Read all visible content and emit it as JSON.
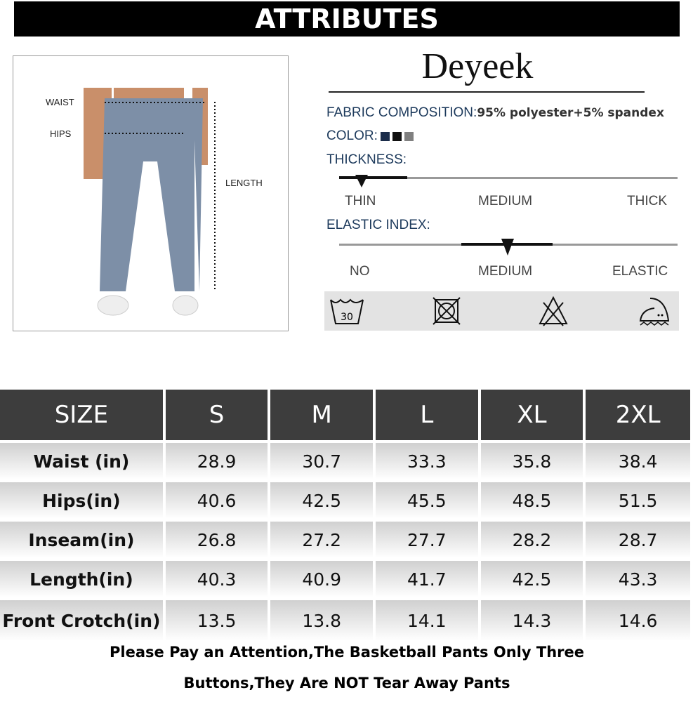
{
  "banner": "ATTRIBUTES",
  "brand": "Deyeek",
  "diagram": {
    "waist": "WAIST",
    "hips": "HIPS",
    "length": "LENGTH"
  },
  "attributes": {
    "fabric_label": "FABRIC COMPOSITION:",
    "fabric_value": "95% polyester+5% spandex",
    "color_label": "COLOR:",
    "colors": [
      "#1b2d4a",
      "#111111",
      "#808080"
    ],
    "thickness_label": "THICKNESS:",
    "thickness_scale": [
      "THIN",
      "MEDIUM",
      "THICK"
    ],
    "thickness_level": "THIN",
    "elastic_label": "ELASTIC INDEX:",
    "elastic_scale": [
      "NO",
      "MEDIUM",
      "ELASTIC"
    ],
    "elastic_level": "MEDIUM",
    "care_icons": [
      "wash-30-icon",
      "do-not-tumble-dry-icon",
      "do-not-bleach-icon",
      "iron-low-icon"
    ],
    "wash_temp": "30"
  },
  "table": {
    "headers": [
      "SIZE",
      "S",
      "M",
      "L",
      "XL",
      "2XL"
    ],
    "rows": [
      [
        "Waist (in)",
        "28.9",
        "30.7",
        "33.3",
        "35.8",
        "38.4"
      ],
      [
        "Hips(in)",
        "40.6",
        "42.5",
        "45.5",
        "48.5",
        "51.5"
      ],
      [
        "Inseam(in)",
        "26.8",
        "27.2",
        "27.7",
        "28.2",
        "28.7"
      ],
      [
        "Length(in)",
        "40.3",
        "40.9",
        "41.7",
        "42.5",
        "43.3"
      ],
      [
        "Front Crotch(in)",
        "13.5",
        "13.8",
        "14.1",
        "14.3",
        "14.6"
      ]
    ]
  },
  "note": {
    "line1": "Please Pay an Attention,The Basketball Pants Only Three",
    "line2": "Buttons,They Are NOT Tear Away Pants"
  }
}
